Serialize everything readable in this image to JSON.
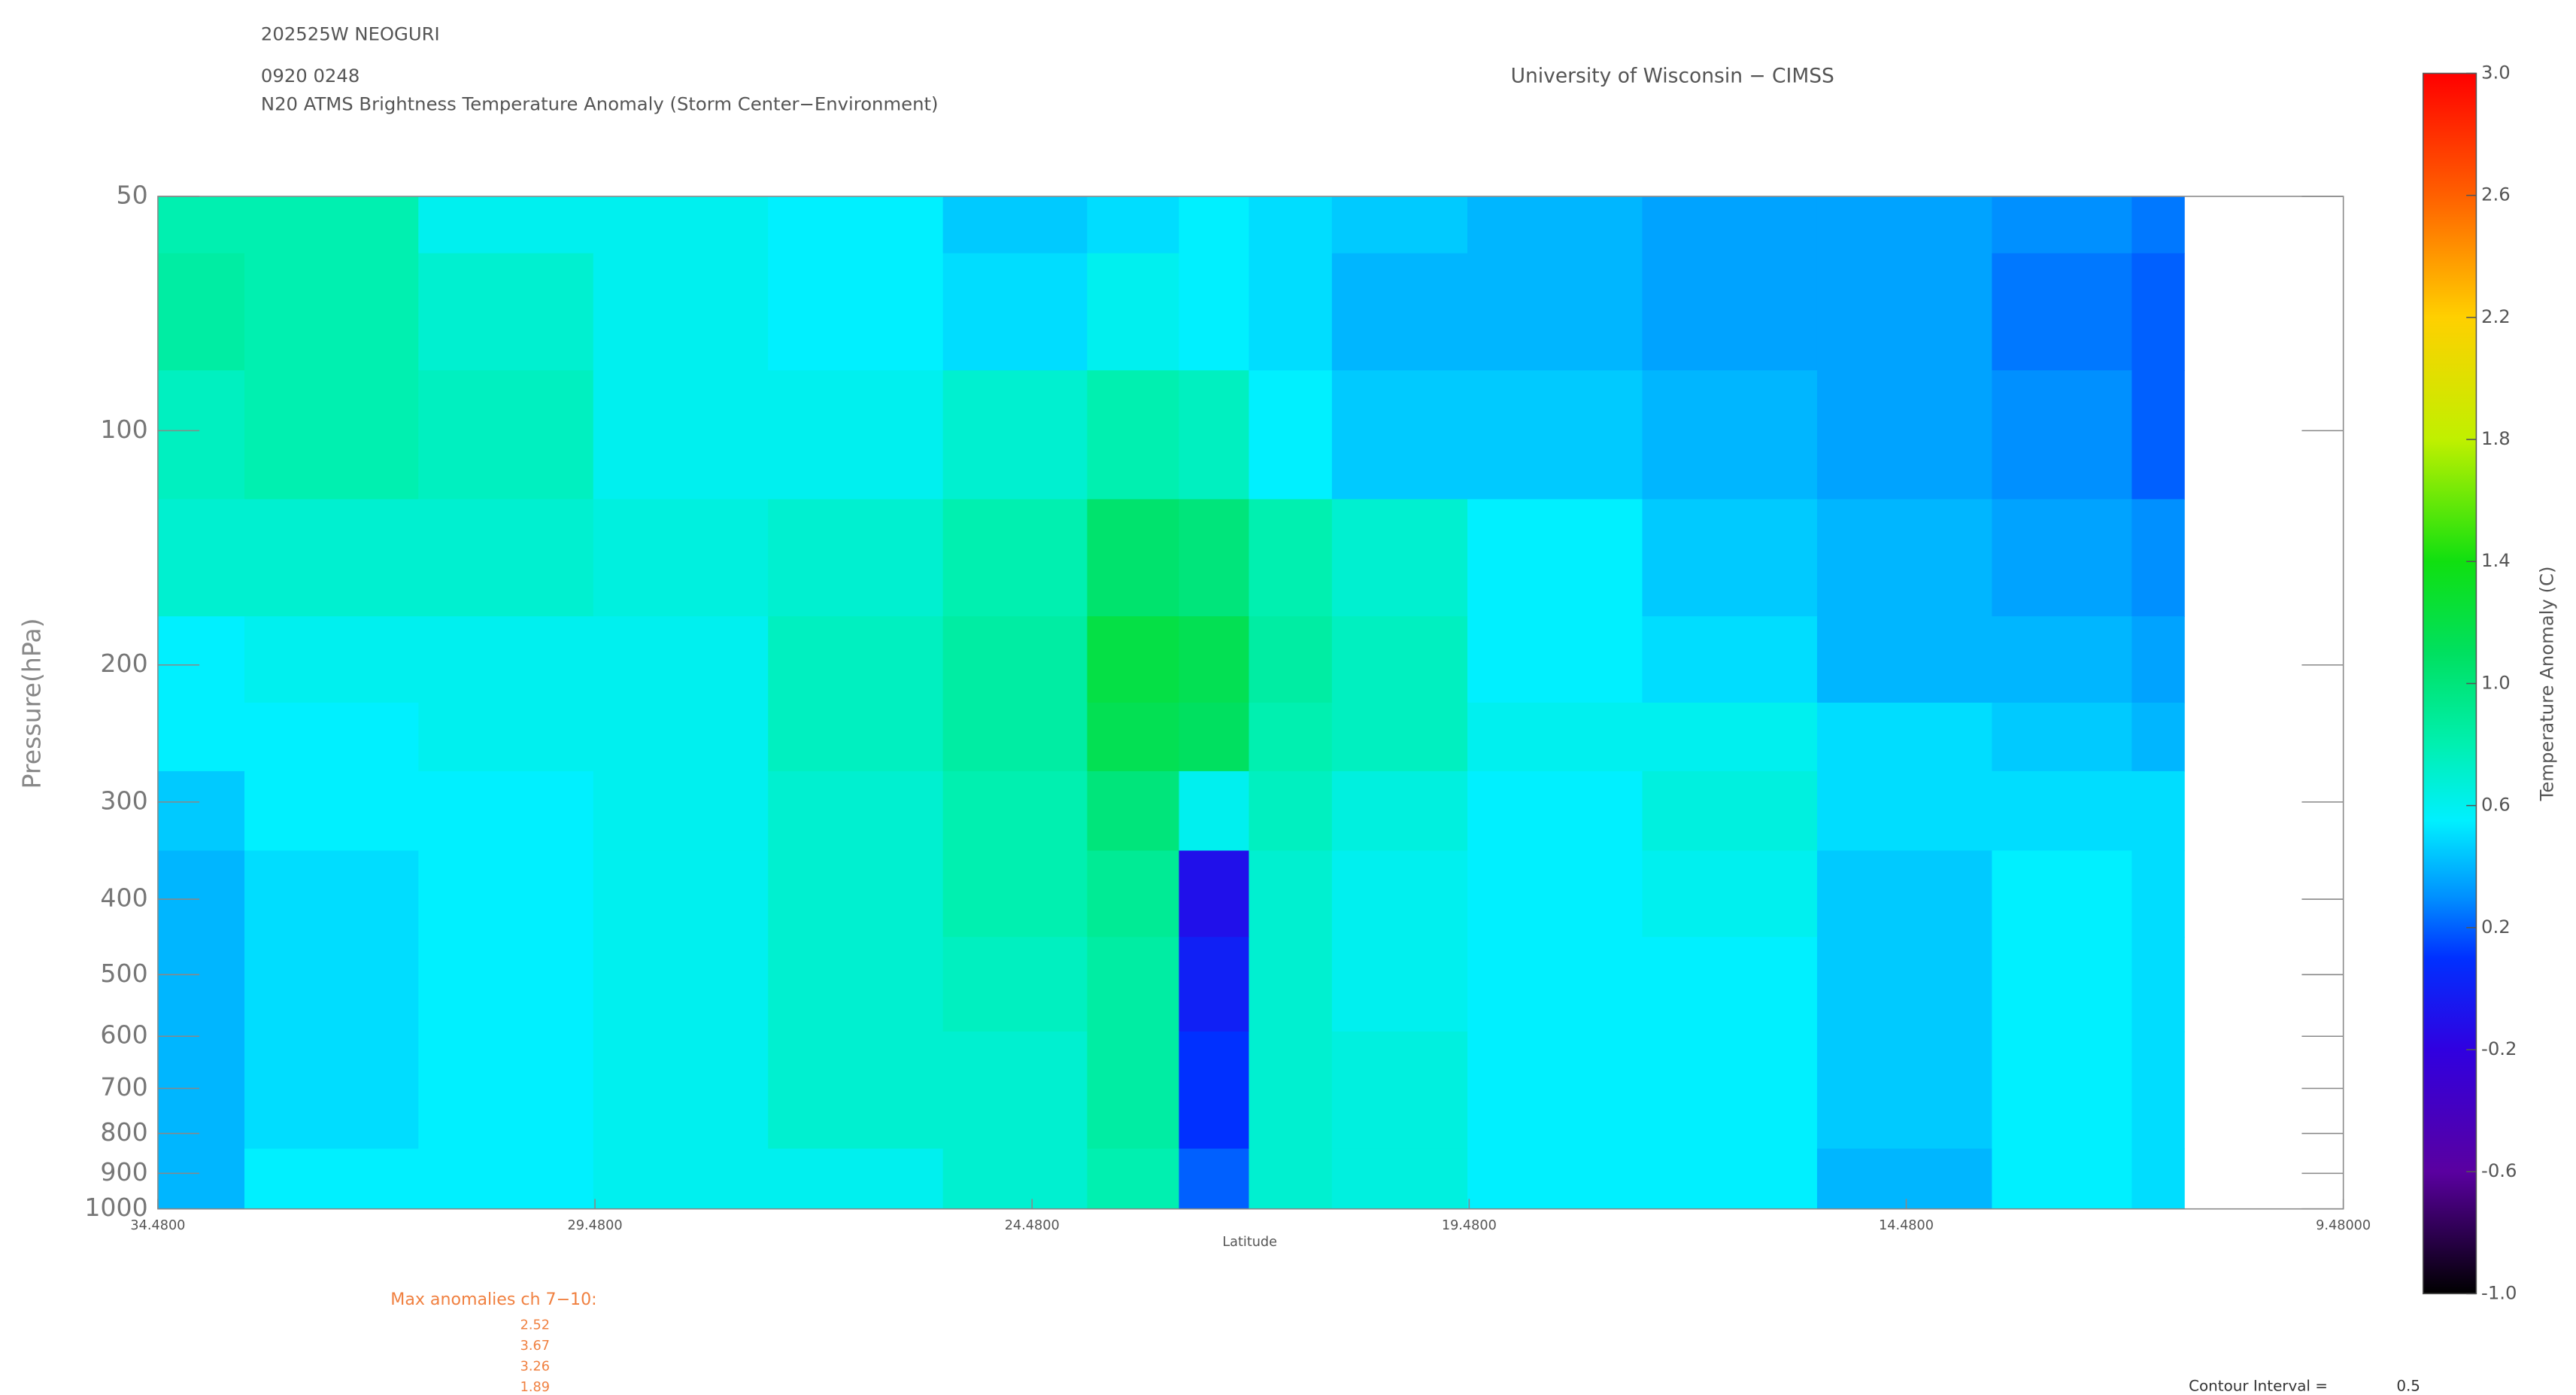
{
  "header": {
    "storm": "202525W NEOGURI",
    "time": "0920 0248",
    "product": "N20 ATMS Brightness Temperature Anomaly (Storm Center−Environment)",
    "source": "University of Wisconsin − CIMSS"
  },
  "chart_data": {
    "type": "contour",
    "xlabel": "Latitude",
    "ylabel": "Pressure(hPa)",
    "colorbar_label": "Temperature Anomaly (C)",
    "x": [
      34.48,
      32.5,
      30.5,
      28.5,
      26.5,
      24.5,
      23.2,
      22.4,
      21.6,
      20.5,
      18.5,
      16.5,
      14.5,
      12.5,
      11.3
    ],
    "y": [
      50,
      70,
      100,
      150,
      200,
      250,
      300,
      400,
      500,
      700,
      1000
    ],
    "z": [
      [
        0.8,
        0.8,
        0.6,
        0.6,
        0.55,
        0.45,
        0.5,
        0.55,
        0.5,
        0.45,
        0.4,
        0.35,
        0.35,
        0.3,
        0.25
      ],
      [
        0.85,
        0.8,
        0.7,
        0.6,
        0.55,
        0.5,
        0.6,
        0.55,
        0.5,
        0.4,
        0.4,
        0.35,
        0.35,
        0.25,
        0.2
      ],
      [
        0.75,
        0.8,
        0.75,
        0.6,
        0.6,
        0.7,
        0.8,
        0.75,
        0.55,
        0.45,
        0.45,
        0.4,
        0.35,
        0.3,
        0.2
      ],
      [
        0.7,
        0.7,
        0.7,
        0.65,
        0.7,
        0.8,
        1.05,
        1.0,
        0.8,
        0.7,
        0.55,
        0.45,
        0.4,
        0.35,
        0.3
      ],
      [
        0.55,
        0.6,
        0.6,
        0.6,
        0.75,
        0.85,
        1.2,
        1.15,
        0.85,
        0.75,
        0.55,
        0.5,
        0.4,
        0.4,
        0.35
      ],
      [
        0.55,
        0.55,
        0.6,
        0.6,
        0.75,
        0.85,
        1.15,
        1.1,
        0.8,
        0.75,
        0.6,
        0.6,
        0.5,
        0.45,
        0.4
      ],
      [
        0.45,
        0.55,
        0.55,
        0.6,
        0.7,
        0.8,
        1.0,
        0.6,
        0.75,
        0.65,
        0.55,
        0.65,
        0.5,
        0.5,
        0.5
      ],
      [
        0.4,
        0.5,
        0.55,
        0.6,
        0.7,
        0.8,
        0.9,
        -0.1,
        0.7,
        0.6,
        0.55,
        0.6,
        0.45,
        0.55,
        0.5
      ],
      [
        0.4,
        0.5,
        0.55,
        0.6,
        0.7,
        0.75,
        0.85,
        0.0,
        0.7,
        0.6,
        0.55,
        0.55,
        0.45,
        0.55,
        0.5
      ],
      [
        0.4,
        0.5,
        0.55,
        0.6,
        0.7,
        0.7,
        0.85,
        0.1,
        0.7,
        0.65,
        0.55,
        0.55,
        0.45,
        0.55,
        0.5
      ],
      [
        0.4,
        0.55,
        0.55,
        0.6,
        0.6,
        0.7,
        0.8,
        0.2,
        0.7,
        0.65,
        0.55,
        0.55,
        0.4,
        0.55,
        0.5
      ]
    ],
    "xlim": [
      34.48,
      9.48
    ],
    "xticks": [
      {
        "value": 34.48,
        "label": "34.4800"
      },
      {
        "value": 29.48,
        "label": "29.4800"
      },
      {
        "value": 24.48,
        "label": "24.4800"
      },
      {
        "value": 19.48,
        "label": "19.4800"
      },
      {
        "value": 14.48,
        "label": "14.4800"
      },
      {
        "value": 9.48,
        "label": "9.48000"
      }
    ],
    "ylim": [
      50,
      1000
    ],
    "ylog": true,
    "yinverted": true,
    "yticks": [
      50,
      100,
      200,
      300,
      400,
      500,
      600,
      700,
      800,
      900,
      1000
    ],
    "clim": [
      -1.0,
      3.0
    ],
    "cticks": [
      {
        "value": -1.0,
        "label": "-1.0"
      },
      -0.6,
      -0.2,
      0.2,
      0.6,
      {
        "value": 1.0,
        "label": "1.0"
      },
      1.4,
      1.8,
      2.2,
      2.6,
      {
        "value": 3.0,
        "label": "3.0"
      }
    ]
  },
  "max_anomalies": {
    "title": "Max anomalies ch 7−10:",
    "values": [
      2.52,
      3.67,
      3.26,
      1.89
    ]
  },
  "contour_interval": {
    "label": "Contour Interval =",
    "value": 0.5
  }
}
